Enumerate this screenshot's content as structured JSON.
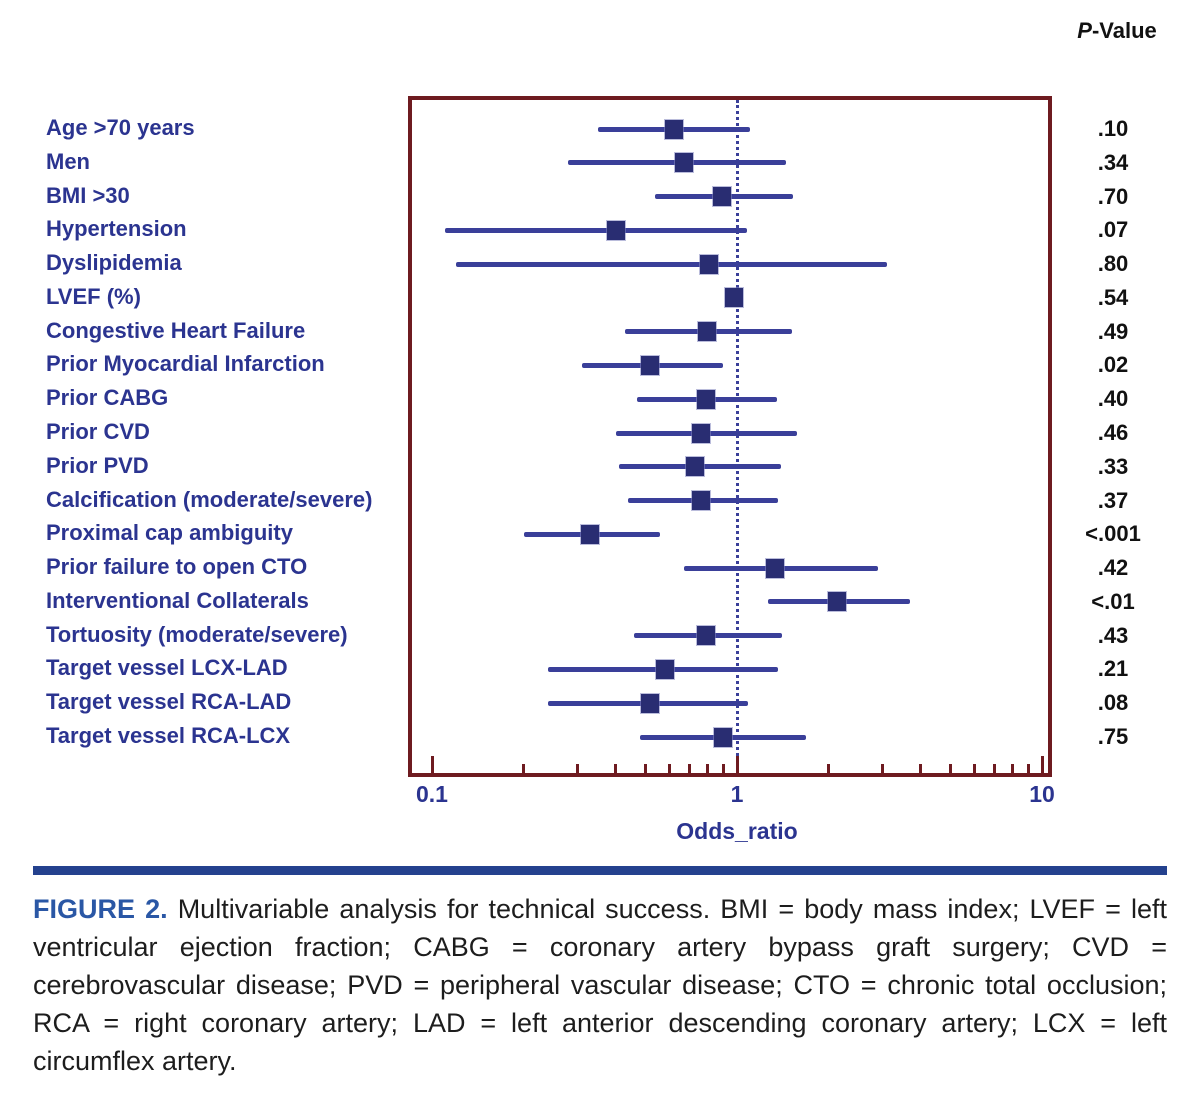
{
  "header": {
    "p_value_column": "P-Value"
  },
  "chart_data": {
    "type": "forest",
    "xlabel": "Odds_ratio",
    "x_scale": "log",
    "xlim": [
      0.1,
      10
    ],
    "x_major_ticks": [
      0.1,
      1,
      10
    ],
    "x_minor_ticks": [
      0.2,
      0.3,
      0.4,
      0.5,
      0.6,
      0.7,
      0.8,
      0.9,
      2,
      3,
      4,
      5,
      6,
      7,
      8,
      9
    ],
    "x_tick_labels": [
      "0.1",
      "1",
      "10"
    ],
    "reference_line": 1,
    "grid": false,
    "legend": "none",
    "rows": [
      {
        "label": "Age >70 years",
        "or": 0.62,
        "ci_low": 0.35,
        "ci_high": 1.1,
        "p": ".10"
      },
      {
        "label": "Men",
        "or": 0.67,
        "ci_low": 0.28,
        "ci_high": 1.45,
        "p": ".34"
      },
      {
        "label": "BMI >30",
        "or": 0.89,
        "ci_low": 0.54,
        "ci_high": 1.53,
        "p": ".70"
      },
      {
        "label": "Hypertension",
        "or": 0.4,
        "ci_low": 0.11,
        "ci_high": 1.08,
        "p": ".07"
      },
      {
        "label": "Dyslipidemia",
        "or": 0.81,
        "ci_low": 0.12,
        "ci_high": 3.1,
        "p": ".80"
      },
      {
        "label": "LVEF (%)",
        "or": 0.98,
        "ci_low": 0.96,
        "ci_high": 1.01,
        "p": ".54"
      },
      {
        "label": "Congestive Heart Failure",
        "or": 0.8,
        "ci_low": 0.43,
        "ci_high": 1.51,
        "p": ".49"
      },
      {
        "label": "Prior Myocardial Infarction",
        "or": 0.52,
        "ci_low": 0.31,
        "ci_high": 0.9,
        "p": ".02"
      },
      {
        "label": "Prior CABG",
        "or": 0.79,
        "ci_low": 0.47,
        "ci_high": 1.35,
        "p": ".40"
      },
      {
        "label": "Prior CVD",
        "or": 0.76,
        "ci_low": 0.4,
        "ci_high": 1.57,
        "p": ".46"
      },
      {
        "label": "Prior PVD",
        "or": 0.73,
        "ci_low": 0.41,
        "ci_high": 1.39,
        "p": ".33"
      },
      {
        "label": "Calcification (moderate/severe)",
        "or": 0.76,
        "ci_low": 0.44,
        "ci_high": 1.36,
        "p": ".37"
      },
      {
        "label": "Proximal cap ambiguity",
        "or": 0.33,
        "ci_low": 0.2,
        "ci_high": 0.56,
        "p": "<.001"
      },
      {
        "label": "Prior failure to open CTO",
        "or": 1.33,
        "ci_low": 0.67,
        "ci_high": 2.91,
        "p": ".42"
      },
      {
        "label": "Interventional Collaterals",
        "or": 2.12,
        "ci_low": 1.26,
        "ci_high": 3.69,
        "p": "<.01"
      },
      {
        "label": "Tortuosity (moderate/severe)",
        "or": 0.79,
        "ci_low": 0.46,
        "ci_high": 1.4,
        "p": ".43"
      },
      {
        "label": "Target vessel LCX-LAD",
        "or": 0.58,
        "ci_low": 0.24,
        "ci_high": 1.36,
        "p": ".21"
      },
      {
        "label": "Target vessel RCA-LAD",
        "or": 0.52,
        "ci_low": 0.24,
        "ci_high": 1.09,
        "p": ".08"
      },
      {
        "label": "Target vessel RCA-LCX",
        "or": 0.9,
        "ci_low": 0.48,
        "ci_high": 1.69,
        "p": ".75"
      }
    ]
  },
  "caption": {
    "figure_label": "FIGURE 2.",
    "text": "Multivariable analysis for technical success. BMI = body mass index; LVEF = left ventricular ejection fraction; CABG = coronary artery bypass graft surgery; CVD = cerebrovascular disease; PVD = peripheral vascular disease; CTO = chronic total occlusion; RCA = right coronary artery; LAD = left anterior descending coronary artery; LCX = left circumflex artery."
  },
  "colors": {
    "navy_text": "#2b3490",
    "ci_line": "#3a3f99",
    "marker": "#292d72",
    "frame_maroon": "#6e1b20",
    "pvalue_black": "#111111",
    "caption_rule_blue": "#24418e",
    "figure_label_blue": "#2a57a5",
    "caption_text": "#1d1d1d"
  }
}
